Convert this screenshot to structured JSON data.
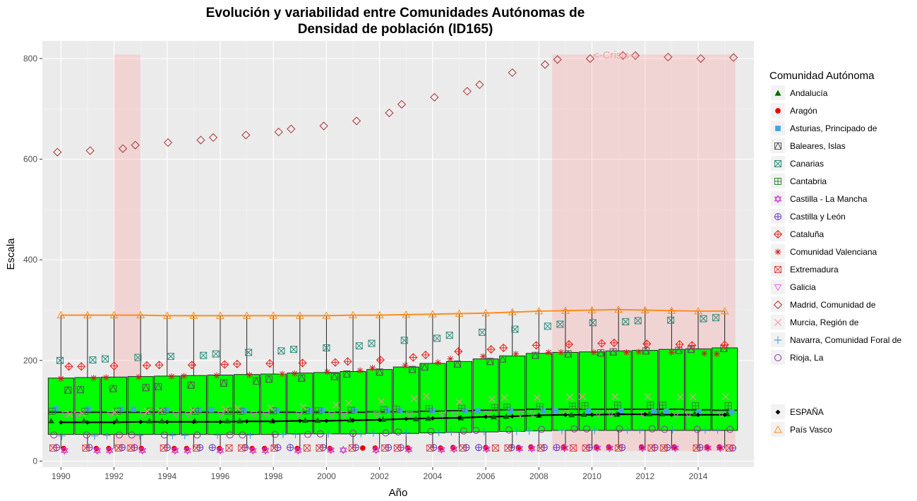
{
  "chart_data": {
    "type": "box",
    "title_line1": "Evolución y variabilidad entre Comunidades Autónomas de",
    "title_line2": "Densidad de población (ID165)",
    "xlabel": "Año",
    "ylabel": "Escala",
    "xlim": [
      1989.3,
      2016.1
    ],
    "ylim": [
      -12,
      835
    ],
    "x_ticks": [
      1990,
      1992,
      1994,
      1996,
      1998,
      2000,
      2002,
      2004,
      2006,
      2008,
      2010,
      2012,
      2014
    ],
    "y_ticks": [
      0,
      200,
      400,
      600,
      800
    ],
    "grid": true,
    "legend_position": "right",
    "legend_title": "Comunidad Autónoma",
    "shaded_periods": [
      [
        1992.0,
        1993.0
      ],
      [
        2008.5,
        2015.4
      ]
    ],
    "annotation": "<-Crisis->",
    "years": [
      1990,
      1991,
      1992,
      1993,
      1994,
      1995,
      1996,
      1997,
      1998,
      1999,
      2000,
      2001,
      2002,
      2003,
      2004,
      2005,
      2006,
      2007,
      2008,
      2009,
      2010,
      2011,
      2012,
      2013,
      2014,
      2015
    ],
    "boxes": {
      "q1": [
        53,
        53,
        53,
        53,
        53,
        53,
        53,
        53,
        53,
        54,
        54,
        54,
        55,
        55,
        56,
        57,
        58,
        59,
        60,
        61,
        61,
        61,
        61,
        61,
        61,
        61
      ],
      "median": [
        97,
        97,
        97,
        97,
        97,
        97,
        97,
        97,
        97,
        97,
        97,
        97,
        98,
        98,
        99,
        100,
        101,
        102,
        103,
        103,
        103,
        103,
        103,
        103,
        102,
        101
      ],
      "q3": [
        165,
        166,
        167,
        168,
        169,
        170,
        171,
        172,
        173,
        175,
        176,
        178,
        182,
        187,
        194,
        198,
        203,
        209,
        214,
        216,
        217,
        219,
        220,
        222,
        223,
        225
      ],
      "lower": [
        25,
        25,
        25,
        25,
        25,
        25,
        25,
        25,
        25,
        25,
        25,
        25,
        25,
        25,
        25,
        25,
        25,
        25,
        25,
        25,
        25,
        25,
        25,
        25,
        25,
        25
      ],
      "upper": [
        290,
        290,
        290,
        290,
        289,
        289,
        289,
        289,
        289,
        289,
        289,
        290,
        291,
        292,
        293,
        294,
        296,
        299,
        301,
        302,
        303,
        304,
        303,
        302,
        300,
        299
      ]
    },
    "series": [
      {
        "name": "Andalucía",
        "color": "#006400",
        "shape": "triangle-filled",
        "values": [
          80,
          80,
          80,
          80,
          80,
          80,
          80,
          80,
          80,
          81,
          81,
          82,
          83,
          84,
          85,
          86,
          88,
          89,
          91,
          92,
          93,
          93,
          94,
          94,
          94,
          94
        ]
      },
      {
        "name": "Aragón",
        "color": "#ee0000",
        "shape": "circle-filled",
        "values": [
          25,
          25,
          25,
          25,
          25,
          25,
          25,
          25,
          25,
          25,
          25,
          26,
          26,
          26,
          26,
          27,
          27,
          27,
          28,
          28,
          28,
          28,
          28,
          28,
          28,
          28
        ]
      },
      {
        "name": "Asturias, Principado de",
        "color": "#3da5e0",
        "shape": "square-filled",
        "values": [
          104,
          103,
          103,
          103,
          102,
          102,
          102,
          101,
          101,
          101,
          101,
          101,
          101,
          100,
          100,
          100,
          100,
          100,
          100,
          100,
          100,
          100,
          99,
          99,
          98,
          98
        ]
      },
      {
        "name": "Baleares, Islas",
        "color": "#555555",
        "shape": "square-triangle",
        "values": [
          141,
          142,
          144,
          146,
          148,
          151,
          155,
          159,
          163,
          165,
          168,
          173,
          177,
          182,
          187,
          193,
          198,
          203,
          210,
          213,
          215,
          217,
          219,
          220,
          222,
          224
        ]
      },
      {
        "name": "Canarias",
        "color": "#2e8b7a",
        "shape": "square-x",
        "values": [
          200,
          201,
          203,
          206,
          208,
          210,
          213,
          216,
          219,
          222,
          225,
          229,
          234,
          240,
          244,
          250,
          256,
          262,
          268,
          272,
          275,
          277,
          279,
          280,
          283,
          285
        ]
      },
      {
        "name": "Cantabria",
        "color": "#2e8b2e",
        "shape": "square-plus",
        "values": [
          99,
          99,
          99,
          99,
          99,
          99,
          99,
          99,
          100,
          100,
          100,
          101,
          102,
          103,
          104,
          105,
          106,
          107,
          108,
          109,
          110,
          111,
          111,
          111,
          110,
          110
        ]
      },
      {
        "name": "Castilla - La Mancha",
        "color": "#cc33cc",
        "shape": "star-david",
        "values": [
          21,
          21,
          21,
          21,
          21,
          21,
          21,
          21,
          21,
          21,
          22,
          22,
          22,
          23,
          23,
          24,
          24,
          25,
          25,
          26,
          26,
          26,
          26,
          26,
          26,
          26
        ]
      },
      {
        "name": "Castilla y León",
        "color": "#6633cc",
        "shape": "circle-plus",
        "values": [
          27,
          27,
          27,
          27,
          27,
          27,
          27,
          27,
          27,
          27,
          27,
          27,
          27,
          27,
          27,
          27,
          27,
          27,
          27,
          27,
          27,
          27,
          27,
          27,
          27,
          26
        ]
      },
      {
        "name": "Cataluña",
        "color": "#ee2222",
        "shape": "diamond-plus",
        "values": [
          188,
          188,
          189,
          190,
          191,
          191,
          192,
          193,
          194,
          195,
          196,
          198,
          201,
          206,
          211,
          218,
          222,
          225,
          230,
          232,
          234,
          235,
          233,
          232,
          230,
          231
        ]
      },
      {
        "name": "Comunidad Valenciana",
        "color": "#cc2222",
        "shape": "asterisk",
        "values": [
          164,
          165,
          166,
          167,
          168,
          169,
          170,
          171,
          173,
          174,
          177,
          180,
          185,
          190,
          196,
          203,
          208,
          213,
          216,
          216,
          216,
          216,
          217,
          216,
          214,
          213
        ]
      },
      {
        "name": "Extremadura",
        "color": "#dd4444",
        "shape": "square-x",
        "values": [
          26,
          26,
          26,
          26,
          26,
          26,
          26,
          26,
          26,
          26,
          26,
          26,
          26,
          26,
          26,
          26,
          26,
          26,
          26,
          26,
          26,
          26,
          26,
          26,
          26,
          26
        ]
      },
      {
        "name": "Galicia",
        "color": "#ee66dd",
        "shape": "triangle-down",
        "values": [
          93,
          93,
          93,
          93,
          93,
          93,
          93,
          93,
          93,
          93,
          93,
          93,
          93,
          93,
          93,
          93,
          94,
          94,
          94,
          94,
          94,
          94,
          93,
          93,
          93,
          93
        ]
      },
      {
        "name": "Madrid, Comunidad de",
        "color": "#aa3333",
        "shape": "diamond",
        "values": [
          614,
          617,
          621,
          628,
          633,
          638,
          643,
          648,
          654,
          660,
          666,
          676,
          692,
          709,
          723,
          735,
          748,
          772,
          788,
          798,
          800,
          806,
          806,
          803,
          800,
          802
        ]
      },
      {
        "name": "Murcia, Región de",
        "color": "#ff8fa0",
        "shape": "x",
        "values": [
          93,
          95,
          97,
          99,
          100,
          101,
          103,
          105,
          106,
          108,
          111,
          115,
          119,
          124,
          129,
          118,
          123,
          126,
          126,
          127,
          128,
          128,
          128,
          127,
          127,
          128
        ]
      },
      {
        "name": "Navarra, Comunidad Foral de",
        "color": "#3399cc",
        "shape": "plus",
        "values": [
          50,
          50,
          51,
          51,
          51,
          51,
          52,
          52,
          53,
          53,
          54,
          55,
          56,
          57,
          57,
          58,
          59,
          59,
          60,
          61,
          61,
          62,
          62,
          62,
          62,
          62
        ]
      },
      {
        "name": "Rioja, La",
        "color": "#883399",
        "shape": "circle-open",
        "values": [
          52,
          52,
          52,
          52,
          52,
          52,
          52,
          52,
          53,
          53,
          54,
          55,
          56,
          58,
          59,
          60,
          61,
          62,
          63,
          64,
          64,
          64,
          64,
          63,
          63,
          63
        ]
      }
    ],
    "espana": {
      "name": "ESPAÑA",
      "values": [
        77,
        77,
        77,
        78,
        78,
        78,
        78,
        79,
        79,
        80,
        80,
        81,
        82,
        84,
        85,
        86,
        88,
        89,
        91,
        92,
        92,
        93,
        93,
        92,
        92,
        92
      ]
    },
    "pais_vasco": {
      "name": "País Vasco",
      "values": [
        290,
        290,
        290,
        290,
        289,
        289,
        289,
        289,
        289,
        289,
        289,
        290,
        290,
        291,
        292,
        293,
        294,
        296,
        298,
        299,
        300,
        301,
        300,
        299,
        298,
        298
      ]
    }
  }
}
